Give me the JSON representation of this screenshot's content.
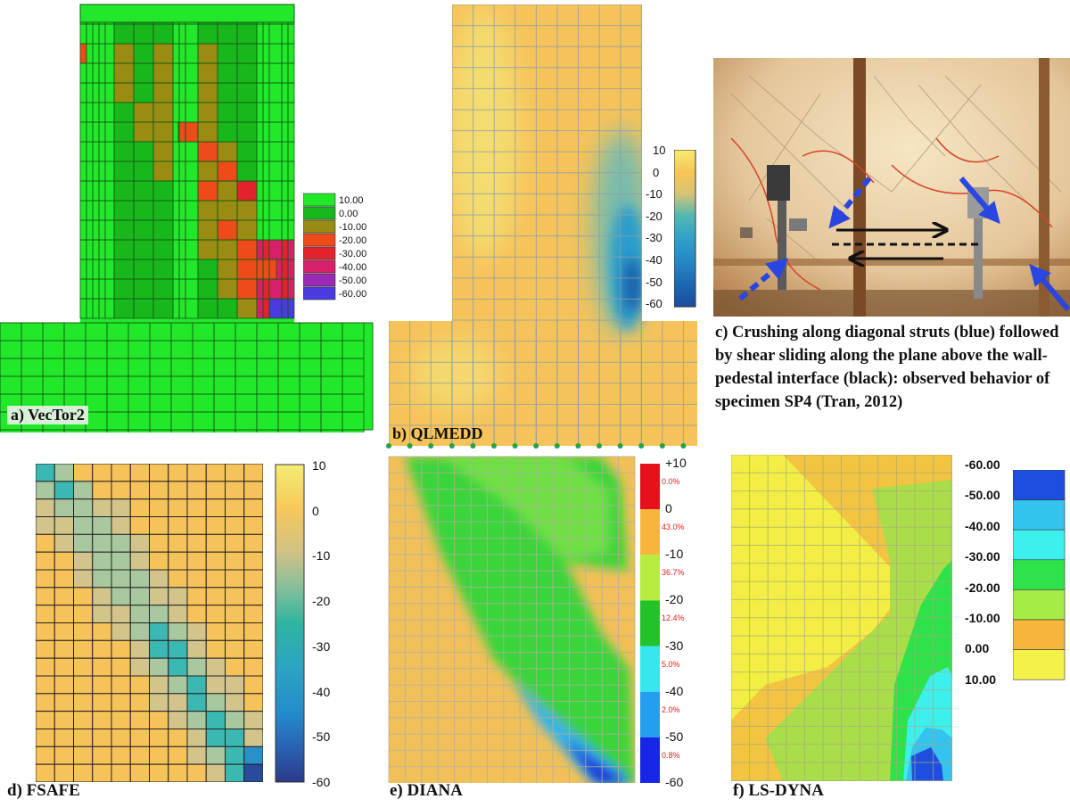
{
  "panels": {
    "a": {
      "label": "a) VecTor2",
      "legend": [
        "10.00",
        "0.00",
        "-10.00",
        "-20.00",
        "-30.00",
        "-40.00",
        "-50.00",
        "-60.00"
      ],
      "legend_colors": [
        "#22e82a",
        "#18b81c",
        "#9a8c12",
        "#ef4a1a",
        "#e3222e",
        "#d8206a",
        "#9a2ab4",
        "#4a3ae0"
      ]
    },
    "b": {
      "label": "b) QLMEDD",
      "colorbar_ticks": [
        "10",
        "0",
        "-10",
        "-20",
        "-30",
        "-40",
        "-50",
        "-60"
      ]
    },
    "c": {
      "caption": "c) Crushing along diagonal struts (blue) followed by shear sliding along the plane above the wall-pedestal interface (black): observed behavior of specimen SP4 (Tran, 2012)"
    },
    "d": {
      "label": "d) FSAFE",
      "colorbar_ticks": [
        "10",
        "0",
        "-10",
        "-20",
        "-30",
        "-40",
        "-50",
        "-60"
      ]
    },
    "e": {
      "label": "e) DIANA",
      "colorbar_ticks": [
        "+10",
        "0",
        "-10",
        "-20",
        "-30",
        "-40",
        "-50",
        "-60"
      ],
      "band_percents": [
        "0.0%",
        "43.0%",
        "36.7%",
        "12.4%",
        "5.0%",
        "2.0%",
        "0.8%"
      ],
      "band_colors": [
        "#e8101c",
        "#f6b63c",
        "#b6ec3c",
        "#22c22a",
        "#34e8ee",
        "#22a0ee",
        "#1626e6"
      ]
    },
    "f": {
      "label": "f) LS-DYNA",
      "legend": [
        "-60.00",
        "-50.00",
        "-40.00",
        "-30.00",
        "-20.00",
        "-10.00",
        "0.00",
        "10.00"
      ],
      "legend_colors": [
        "#1e4ee0",
        "#34c2ee",
        "#3cf0ee",
        "#2ee24a",
        "#a6ec46",
        "#f6b63c",
        "#f4f24a"
      ]
    }
  }
}
